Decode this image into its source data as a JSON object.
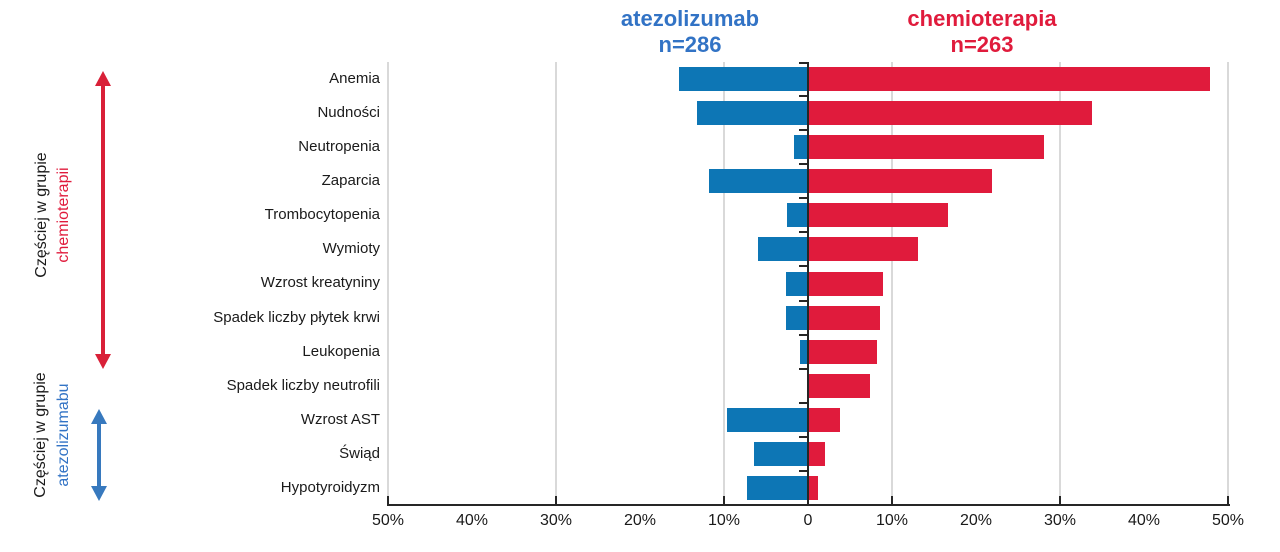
{
  "colors": {
    "bar_blue": "#0d76b5",
    "bar_red": "#e01b3c",
    "text_blue": "#3273c5",
    "text_red": "#e01b3c",
    "arrow_blue": "#3779be",
    "arrow_red": "#d92038",
    "grid": "#d9d9d9",
    "axis": "#262626"
  },
  "header": {
    "left_group": {
      "name": "atezolizumab",
      "n": "n=286"
    },
    "right_group": {
      "name": "chemioterapia",
      "n": "n=263"
    }
  },
  "side_annotations": {
    "chemo": {
      "line1": "Częściej w grupie",
      "line2": "chemioterapii"
    },
    "atezo": {
      "line1": "Częściej w grupie",
      "line2": "atezolizumabu"
    }
  },
  "chart_data": {
    "type": "bar",
    "orientation": "horizontal-diverging",
    "title": "",
    "xlabel": "",
    "ylabel": "",
    "axis_max": 50,
    "grid": true,
    "gridlines_percent": [
      10,
      30,
      50
    ],
    "tick_marks": [
      -50,
      -30,
      -10,
      0,
      10,
      30,
      50
    ],
    "x_ticks": [
      {
        "value": -50,
        "label": "50%"
      },
      {
        "value": -40,
        "label": "40%"
      },
      {
        "value": -30,
        "label": "30%"
      },
      {
        "value": -20,
        "label": "20%"
      },
      {
        "value": -10,
        "label": "10%"
      },
      {
        "value": 0,
        "label": "0"
      },
      {
        "value": 10,
        "label": "10%"
      },
      {
        "value": 20,
        "label": "20%"
      },
      {
        "value": 30,
        "label": "30%"
      },
      {
        "value": 40,
        "label": "40%"
      },
      {
        "value": 50,
        "label": "50%"
      }
    ],
    "categories": [
      "Anemia",
      "Nudności",
      "Neutropenia",
      "Zaparcia",
      "Trombocytopenia",
      "Wymioty",
      "Wzrost kreatyniny",
      "Spadek liczby płytek krwi",
      "Leukopenia",
      "Spadek liczby neutrofili",
      "Wzrost AST",
      "Świąd",
      "Hypotyroidyzm"
    ],
    "series": [
      {
        "name": "atezolizumab",
        "n": 286,
        "side": "left",
        "values": [
          15.3,
          13.2,
          1.7,
          11.8,
          2.5,
          6.0,
          2.6,
          2.6,
          1.0,
          0,
          9.6,
          6.4,
          7.3
        ]
      },
      {
        "name": "chemioterapia",
        "n": 263,
        "side": "right",
        "values": [
          47.9,
          33.8,
          28.1,
          21.9,
          16.7,
          13.1,
          8.9,
          8.6,
          8.2,
          7.4,
          3.8,
          2.0,
          1.2
        ]
      }
    ],
    "legend_position": "top"
  }
}
